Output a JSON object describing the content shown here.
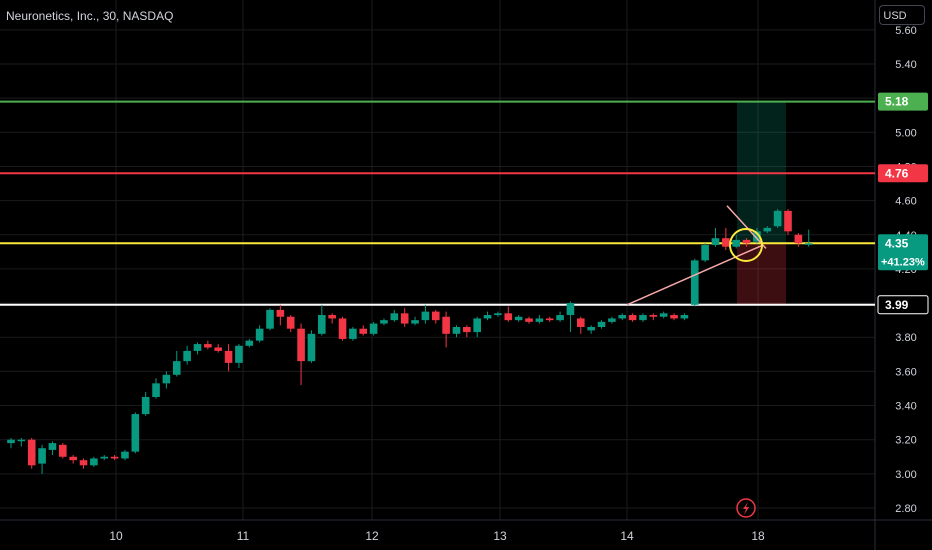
{
  "symbol_title": "Neuronetics, Inc., 30, NASDAQ",
  "currency": "USD",
  "chart_data": {
    "type": "candlestick",
    "x_labels": [
      "10",
      "11",
      "12",
      "13",
      "14",
      "18"
    ],
    "y_ticks": [
      5.6,
      5.4,
      5.2,
      5.0,
      4.8,
      4.6,
      4.4,
      4.2,
      4.0,
      3.8,
      3.6,
      3.4,
      3.2,
      3.0,
      2.8
    ],
    "ylim": [
      2.7,
      5.7
    ],
    "grid": true,
    "candles": [
      [
        3.18,
        3.2,
        3.15,
        3.21
      ],
      [
        3.2,
        3.2,
        3.16,
        3.21
      ],
      [
        3.2,
        3.05,
        3.03,
        3.21
      ],
      [
        3.06,
        3.15,
        3.0,
        3.17
      ],
      [
        3.14,
        3.18,
        3.11,
        3.19
      ],
      [
        3.17,
        3.1,
        3.09,
        3.18
      ],
      [
        3.1,
        3.08,
        3.06,
        3.11
      ],
      [
        3.08,
        3.05,
        3.03,
        3.09
      ],
      [
        3.05,
        3.09,
        3.04,
        3.1
      ],
      [
        3.09,
        3.1,
        3.08,
        3.11
      ],
      [
        3.1,
        3.09,
        3.08,
        3.11
      ],
      [
        3.09,
        3.13,
        3.08,
        3.14
      ],
      [
        3.13,
        3.35,
        3.12,
        3.36
      ],
      [
        3.35,
        3.45,
        3.34,
        3.48
      ],
      [
        3.45,
        3.53,
        3.44,
        3.56
      ],
      [
        3.53,
        3.58,
        3.5,
        3.6
      ],
      [
        3.58,
        3.66,
        3.57,
        3.72
      ],
      [
        3.66,
        3.72,
        3.64,
        3.75
      ],
      [
        3.72,
        3.76,
        3.7,
        3.77
      ],
      [
        3.76,
        3.74,
        3.73,
        3.78
      ],
      [
        3.74,
        3.72,
        3.71,
        3.76
      ],
      [
        3.72,
        3.65,
        3.6,
        3.76
      ],
      [
        3.65,
        3.75,
        3.62,
        3.76
      ],
      [
        3.75,
        3.78,
        3.74,
        3.79
      ],
      [
        3.78,
        3.85,
        3.77,
        3.87
      ],
      [
        3.85,
        3.96,
        3.84,
        3.97
      ],
      [
        3.96,
        3.92,
        3.87,
        3.99
      ],
      [
        3.92,
        3.85,
        3.83,
        3.93
      ],
      [
        3.85,
        3.66,
        3.52,
        3.88
      ],
      [
        3.66,
        3.82,
        3.65,
        3.84
      ],
      [
        3.82,
        3.93,
        3.81,
        3.99
      ],
      [
        3.93,
        3.91,
        3.88,
        3.94
      ],
      [
        3.91,
        3.79,
        3.78,
        3.92
      ],
      [
        3.79,
        3.85,
        3.78,
        3.86
      ],
      [
        3.85,
        3.82,
        3.81,
        3.87
      ],
      [
        3.82,
        3.88,
        3.81,
        3.89
      ],
      [
        3.88,
        3.9,
        3.87,
        3.91
      ],
      [
        3.9,
        3.94,
        3.89,
        3.96
      ],
      [
        3.94,
        3.88,
        3.86,
        3.97
      ],
      [
        3.88,
        3.9,
        3.87,
        3.92
      ],
      [
        3.9,
        3.95,
        3.88,
        3.99
      ],
      [
        3.95,
        3.9,
        3.88,
        3.96
      ],
      [
        3.92,
        3.82,
        3.74,
        3.95
      ],
      [
        3.82,
        3.86,
        3.8,
        3.87
      ],
      [
        3.86,
        3.83,
        3.8,
        3.87
      ],
      [
        3.83,
        3.91,
        3.8,
        3.92
      ],
      [
        3.91,
        3.93,
        3.9,
        3.95
      ],
      [
        3.93,
        3.94,
        3.92,
        3.95
      ],
      [
        3.94,
        3.9,
        3.89,
        3.98
      ],
      [
        3.9,
        3.92,
        3.89,
        3.93
      ],
      [
        3.91,
        3.89,
        3.88,
        3.92
      ],
      [
        3.89,
        3.91,
        3.88,
        3.93
      ],
      [
        3.91,
        3.9,
        3.89,
        3.92
      ],
      [
        3.9,
        3.93,
        3.89,
        3.95
      ],
      [
        3.93,
        4.0,
        3.83,
        4.01
      ],
      [
        3.91,
        3.86,
        3.82,
        3.92
      ],
      [
        3.84,
        3.86,
        3.82,
        3.87
      ],
      [
        3.86,
        3.89,
        3.85,
        3.9
      ],
      [
        3.89,
        3.91,
        3.88,
        3.92
      ],
      [
        3.91,
        3.93,
        3.9,
        3.94
      ],
      [
        3.93,
        3.9,
        3.89,
        3.94
      ],
      [
        3.9,
        3.93,
        3.89,
        3.94
      ],
      [
        3.93,
        3.92,
        3.9,
        3.94
      ],
      [
        3.92,
        3.94,
        3.91,
        3.95
      ],
      [
        3.93,
        3.91,
        3.9,
        3.94
      ],
      [
        3.91,
        3.93,
        3.9,
        3.94
      ],
      [
        3.99,
        4.25,
        3.98,
        4.26
      ],
      [
        4.25,
        4.34,
        4.24,
        4.35
      ],
      [
        4.34,
        4.38,
        4.33,
        4.44
      ],
      [
        4.38,
        4.33,
        4.31,
        4.44
      ],
      [
        4.33,
        4.37,
        4.32,
        4.4
      ],
      [
        4.37,
        4.35,
        4.33,
        4.38
      ],
      [
        4.36,
        4.42,
        4.35,
        4.44
      ],
      [
        4.42,
        4.44,
        4.41,
        4.45
      ],
      [
        4.45,
        4.54,
        4.44,
        4.55
      ],
      [
        4.54,
        4.42,
        4.4,
        4.55
      ],
      [
        4.4,
        4.35,
        4.33,
        4.41
      ],
      [
        4.35,
        4.35,
        4.33,
        4.43
      ]
    ],
    "levels": [
      {
        "label": "5.18",
        "value": 5.18,
        "color": "#4caf50"
      },
      {
        "label": "4.76",
        "value": 4.76,
        "color": "#f23645"
      },
      {
        "label": "4.35",
        "value": 4.35,
        "color": "#fbe93c",
        "sub_label": "+41.23%",
        "label_bg": "#089981"
      },
      {
        "label": "3.99",
        "value": 3.99,
        "color": "#ffffff",
        "label_bg": "#000000",
        "label_fg": "#ffffff"
      }
    ],
    "colors": {
      "up": "#089981",
      "down": "#f23645",
      "grid": "#1a1b1f",
      "axis_text": "#d1d4dc"
    }
  }
}
